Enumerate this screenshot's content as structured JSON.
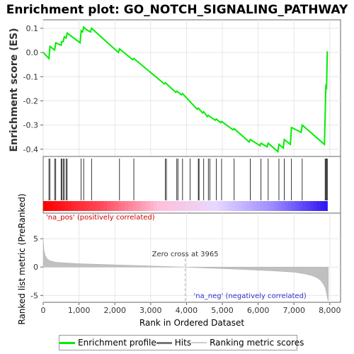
{
  "chart_data": [
    {
      "type": "line",
      "title": "Enrichment plot: GO_NOTCH_SIGNALING_PATHWAY",
      "ylabel": "Enrichment score (ES)",
      "xlim": [
        0,
        8300
      ],
      "ylim": [
        -0.43,
        0.135
      ],
      "yticks": [
        "-0.4",
        "-0.3",
        "-0.2",
        "-0.1",
        "0.0",
        "0.1"
      ],
      "ytick_values": [
        -0.4,
        -0.3,
        -0.2,
        -0.1,
        0.0,
        0.1
      ],
      "grid": true,
      "series": [
        {
          "name": "Enrichment profile",
          "color": "#00ee00",
          "x": [
            0,
            160,
            190,
            320,
            350,
            500,
            520,
            560,
            590,
            640,
            670,
            1030,
            1060,
            1100,
            1130,
            1200,
            1320,
            1350,
            2100,
            2130,
            2500,
            2530,
            3380,
            3410,
            3700,
            3730,
            3860,
            3890,
            4300,
            4330,
            4450,
            4480,
            4580,
            4610,
            4800,
            4830,
            4950,
            4980,
            5300,
            5330,
            5750,
            5780,
            6050,
            6080,
            6250,
            6280,
            6550,
            6580,
            6700,
            6730,
            6900,
            6930,
            7200,
            7230,
            7850,
            7870,
            7890,
            7910,
            7930
          ],
          "y": [
            0.0,
            -0.025,
            0.025,
            0.01,
            0.04,
            0.03,
            0.045,
            0.045,
            0.065,
            0.06,
            0.08,
            0.04,
            0.09,
            0.085,
            0.105,
            0.095,
            0.085,
            0.1,
            0.0,
            0.015,
            -0.03,
            -0.025,
            -0.13,
            -0.125,
            -0.165,
            -0.16,
            -0.175,
            -0.17,
            -0.235,
            -0.23,
            -0.25,
            -0.245,
            -0.265,
            -0.26,
            -0.28,
            -0.275,
            -0.29,
            -0.285,
            -0.32,
            -0.315,
            -0.37,
            -0.36,
            -0.385,
            -0.375,
            -0.39,
            -0.375,
            -0.41,
            -0.38,
            -0.395,
            -0.36,
            -0.38,
            -0.31,
            -0.33,
            -0.3,
            -0.38,
            -0.265,
            -0.14,
            -0.145,
            0.005
          ]
        }
      ]
    },
    {
      "type": "scatter",
      "series": [
        {
          "name": "Hits",
          "color": "#000000",
          "x": [
            160,
            190,
            320,
            350,
            500,
            520,
            560,
            590,
            640,
            670,
            1060,
            1130,
            1350,
            2130,
            2530,
            3410,
            3440,
            3730,
            3760,
            3890,
            4100,
            4330,
            4350,
            4480,
            4610,
            4650,
            4830,
            4980,
            5330,
            5780,
            6080,
            6280,
            6580,
            6730,
            6930,
            7230,
            7870,
            7890,
            7910,
            7930
          ]
        }
      ]
    },
    {
      "type": "area",
      "ylabel": "Ranked list metric (PreRanked)",
      "xlabel": "Rank in Ordered Dataset",
      "xlim": [
        0,
        8300
      ],
      "ylim": [
        -6.2,
        9.5
      ],
      "yticks": [
        "-5",
        "0",
        "5"
      ],
      "ytick_values": [
        -5,
        0,
        5
      ],
      "xticks": [
        "0",
        "1,000",
        "2,000",
        "3,000",
        "4,000",
        "5,000",
        "6,000",
        "7,000",
        "8,000"
      ],
      "xtick_values": [
        0,
        1000,
        2000,
        3000,
        4000,
        5000,
        6000,
        7000,
        8000
      ],
      "series": [
        {
          "name": "Ranking metric scores",
          "color": "#c0c0c0",
          "x": [
            0,
            20,
            60,
            120,
            200,
            350,
            600,
            1000,
            1500,
            2000,
            3000,
            3965,
            4500,
            5500,
            6500,
            7000,
            7300,
            7500,
            7650,
            7750,
            7820,
            7870,
            7900,
            7920,
            7940,
            7960
          ],
          "y": [
            5.0,
            3.0,
            2.0,
            1.4,
            1.1,
            0.85,
            0.75,
            0.6,
            0.5,
            0.4,
            0.2,
            0.0,
            -0.15,
            -0.4,
            -0.7,
            -0.9,
            -1.2,
            -1.5,
            -1.9,
            -2.4,
            -3.0,
            -3.6,
            -4.3,
            -5.0,
            -5.6,
            -6.0
          ]
        }
      ],
      "annotations": {
        "zero_cross": "Zero cross at 3965",
        "zero_cross_x": 3965,
        "pos_label": "'na_pos' (positively correlated)",
        "neg_label": "'na_neg' (negatively correlated)"
      }
    }
  ],
  "heat_colors": [
    "#ff0000",
    "#ff4a5a",
    "#ffbfd8",
    "#e8d8ff",
    "#9d8cff",
    "#2b10f0"
  ],
  "legend": {
    "items": [
      {
        "label": "Enrichment profile",
        "color": "#00ee00"
      },
      {
        "label": "Hits",
        "color": "#777777"
      },
      {
        "label": "Ranking metric scores",
        "color": "#cccccc"
      }
    ]
  }
}
